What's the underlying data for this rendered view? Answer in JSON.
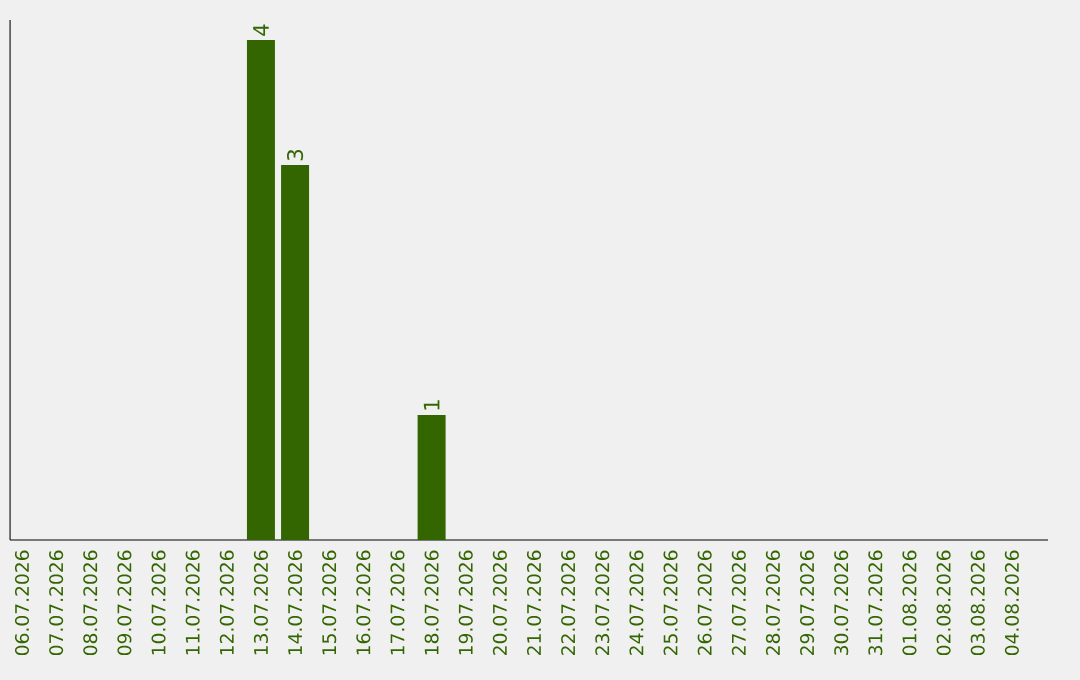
{
  "chart_data": {
    "type": "bar",
    "categories": [
      "06.07.2026",
      "07.07.2026",
      "08.07.2026",
      "09.07.2026",
      "10.07.2026",
      "11.07.2026",
      "12.07.2026",
      "13.07.2026",
      "14.07.2026",
      "15.07.2026",
      "16.07.2026",
      "17.07.2026",
      "18.07.2026",
      "19.07.2026",
      "20.07.2026",
      "21.07.2026",
      "22.07.2026",
      "23.07.2026",
      "24.07.2026",
      "25.07.2026",
      "26.07.2026",
      "27.07.2026",
      "28.07.2026",
      "29.07.2026",
      "30.07.2026",
      "31.07.2026",
      "01.08.2026",
      "02.08.2026",
      "03.08.2026",
      "04.08.2026"
    ],
    "values": [
      0,
      0,
      0,
      0,
      0,
      0,
      0,
      4,
      3,
      0,
      0,
      0,
      1,
      0,
      0,
      0,
      0,
      0,
      0,
      0,
      0,
      0,
      0,
      0,
      0,
      0,
      0,
      0,
      0,
      0
    ],
    "value_labels": [
      null,
      null,
      null,
      null,
      null,
      null,
      null,
      "4",
      "3",
      null,
      null,
      null,
      "1",
      null,
      null,
      null,
      null,
      null,
      null,
      null,
      null,
      null,
      null,
      null,
      null,
      null,
      null,
      null,
      null,
      null
    ],
    "color": "#336600"
  }
}
